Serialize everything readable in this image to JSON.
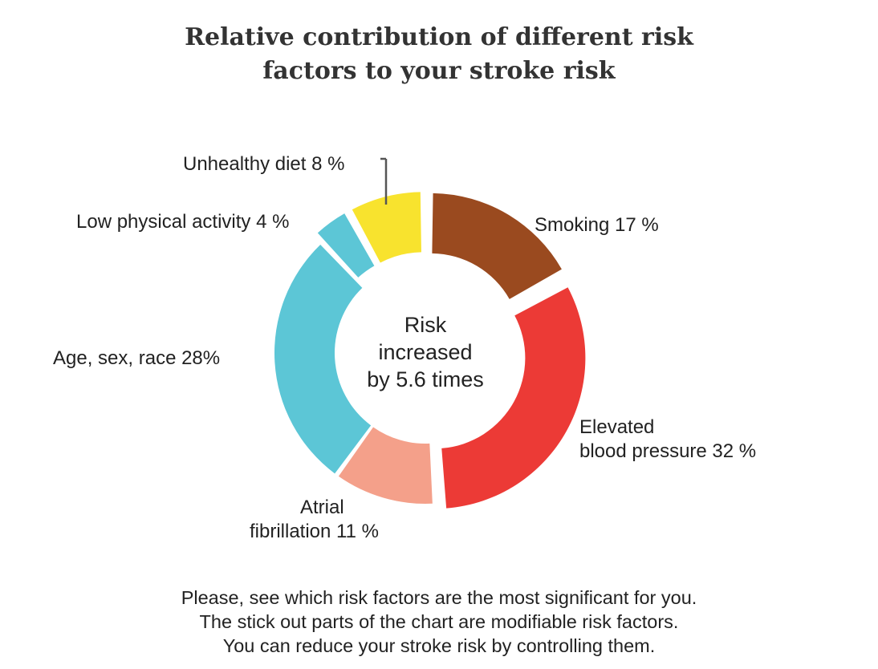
{
  "chart_data": {
    "type": "pie",
    "variant": "donut",
    "title_lines": [
      "Relative contribution of different risk",
      "factors to your stroke risk"
    ],
    "center_text": [
      "Risk",
      "increased",
      "by 5.6 times"
    ],
    "slices": [
      {
        "name": "Smoking",
        "label_lines": [
          "Smoking 17 %"
        ],
        "value": 17,
        "color": "#9a4a1f",
        "exploded": true
      },
      {
        "name": "Elevated blood pressure",
        "label_lines": [
          "Elevated",
          "blood pressure 32 %"
        ],
        "value": 32,
        "color": "#ec3a36",
        "exploded": true
      },
      {
        "name": "Atrial fibrillation",
        "label_lines": [
          "Atrial",
          "fibrillation 11 %"
        ],
        "value": 11,
        "color": "#f4a08a",
        "exploded": false
      },
      {
        "name": "Age, sex, race",
        "label_lines": [
          "Age, sex, race 28%"
        ],
        "value": 28,
        "color": "#5cc6d6",
        "exploded": false
      },
      {
        "name": "Low physical activity",
        "label_lines": [
          "Low physical activity 4 %"
        ],
        "value": 4,
        "color": "#5cc6d6",
        "exploded": true
      },
      {
        "name": "Unhealthy diet",
        "label_lines": [
          "Unhealthy diet 8 %"
        ],
        "value": 8,
        "color": "#f8e32e",
        "exploded": true
      }
    ],
    "footnote": [
      "Please, see which risk factors are the most significant for you.",
      "The stick out parts of the chart are modifiable risk factors.",
      "You can reduce your stroke risk by controlling them."
    ]
  }
}
